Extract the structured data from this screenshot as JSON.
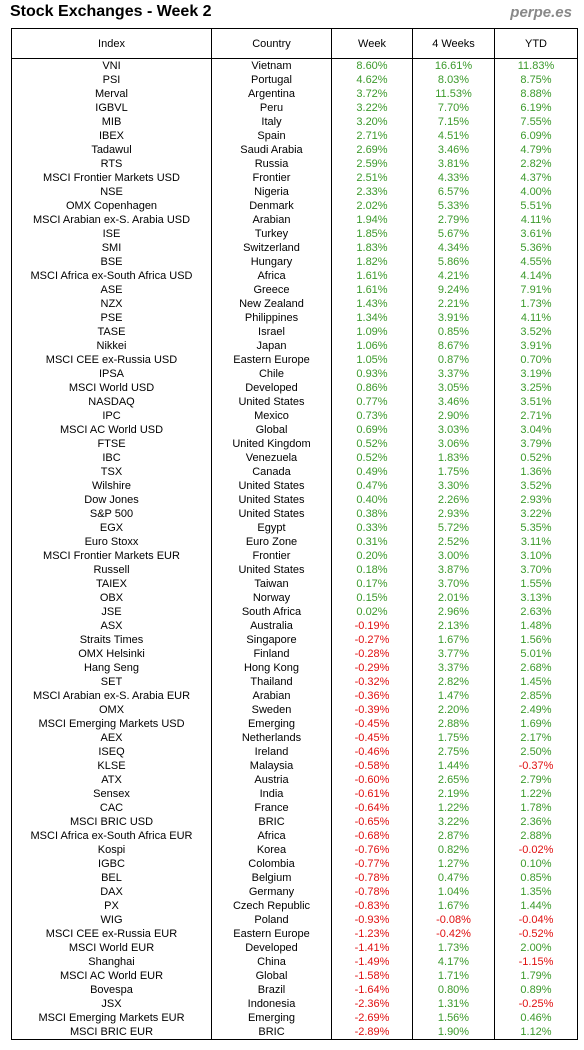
{
  "header": {
    "title": "Stock Exchanges - Week 2",
    "site": "perpe.es"
  },
  "table": {
    "columns": [
      "Index",
      "Country",
      "Week",
      "4 Weeks",
      "YTD"
    ],
    "rows": [
      [
        "VNI",
        "Vietnam",
        "8.60%",
        "16.61%",
        "11.83%"
      ],
      [
        "PSI",
        "Portugal",
        "4.62%",
        "8.03%",
        "8.75%"
      ],
      [
        "Merval",
        "Argentina",
        "3.72%",
        "11.53%",
        "8.88%"
      ],
      [
        "IGBVL",
        "Peru",
        "3.22%",
        "7.70%",
        "6.19%"
      ],
      [
        "MIB",
        "Italy",
        "3.20%",
        "7.15%",
        "7.55%"
      ],
      [
        "IBEX",
        "Spain",
        "2.71%",
        "4.51%",
        "6.09%"
      ],
      [
        "Tadawul",
        "Saudi Arabia",
        "2.69%",
        "3.46%",
        "4.79%"
      ],
      [
        "RTS",
        "Russia",
        "2.59%",
        "3.81%",
        "2.82%"
      ],
      [
        "MSCI Frontier Markets USD",
        "Frontier",
        "2.51%",
        "4.33%",
        "4.37%"
      ],
      [
        "NSE",
        "Nigeria",
        "2.33%",
        "6.57%",
        "4.00%"
      ],
      [
        "OMX Copenhagen",
        "Denmark",
        "2.02%",
        "5.33%",
        "5.51%"
      ],
      [
        "MSCI Arabian ex-S. Arabia USD",
        "Arabian",
        "1.94%",
        "2.79%",
        "4.11%"
      ],
      [
        "ISE",
        "Turkey",
        "1.85%",
        "5.67%",
        "3.61%"
      ],
      [
        "SMI",
        "Switzerland",
        "1.83%",
        "4.34%",
        "5.36%"
      ],
      [
        "BSE",
        "Hungary",
        "1.82%",
        "5.86%",
        "4.55%"
      ],
      [
        "MSCI Africa ex-South Africa USD",
        "Africa",
        "1.61%",
        "4.21%",
        "4.14%"
      ],
      [
        "ASE",
        "Greece",
        "1.61%",
        "9.24%",
        "7.91%"
      ],
      [
        "NZX",
        "New Zealand",
        "1.43%",
        "2.21%",
        "1.73%"
      ],
      [
        "PSE",
        "Philippines",
        "1.34%",
        "3.91%",
        "4.11%"
      ],
      [
        "TASE",
        "Israel",
        "1.09%",
        "0.85%",
        "3.52%"
      ],
      [
        "Nikkei",
        "Japan",
        "1.06%",
        "8.67%",
        "3.91%"
      ],
      [
        "MSCI CEE ex-Russia USD",
        "Eastern Europe",
        "1.05%",
        "0.87%",
        "0.70%"
      ],
      [
        "IPSA",
        "Chile",
        "0.93%",
        "3.37%",
        "3.19%"
      ],
      [
        "MSCI World USD",
        "Developed",
        "0.86%",
        "3.05%",
        "3.25%"
      ],
      [
        "NASDAQ",
        "United States",
        "0.77%",
        "3.46%",
        "3.51%"
      ],
      [
        "IPC",
        "Mexico",
        "0.73%",
        "2.90%",
        "2.71%"
      ],
      [
        "MSCI AC World USD",
        "Global",
        "0.69%",
        "3.03%",
        "3.04%"
      ],
      [
        "FTSE",
        "United Kingdom",
        "0.52%",
        "3.06%",
        "3.79%"
      ],
      [
        "IBC",
        "Venezuela",
        "0.52%",
        "1.83%",
        "0.52%"
      ],
      [
        "TSX",
        "Canada",
        "0.49%",
        "1.75%",
        "1.36%"
      ],
      [
        "Wilshire",
        "United States",
        "0.47%",
        "3.30%",
        "3.52%"
      ],
      [
        "Dow Jones",
        "United States",
        "0.40%",
        "2.26%",
        "2.93%"
      ],
      [
        "S&P 500",
        "United States",
        "0.38%",
        "2.93%",
        "3.22%"
      ],
      [
        "EGX",
        "Egypt",
        "0.33%",
        "5.72%",
        "5.35%"
      ],
      [
        "Euro Stoxx",
        "Euro Zone",
        "0.31%",
        "2.52%",
        "3.11%"
      ],
      [
        "MSCI Frontier Markets EUR",
        "Frontier",
        "0.20%",
        "3.00%",
        "3.10%"
      ],
      [
        "Russell",
        "United States",
        "0.18%",
        "3.87%",
        "3.70%"
      ],
      [
        "TAIEX",
        "Taiwan",
        "0.17%",
        "3.70%",
        "1.55%"
      ],
      [
        "OBX",
        "Norway",
        "0.15%",
        "2.01%",
        "3.13%"
      ],
      [
        "JSE",
        "South Africa",
        "0.02%",
        "2.96%",
        "2.63%"
      ],
      [
        "ASX",
        "Australia",
        "-0.19%",
        "2.13%",
        "1.48%"
      ],
      [
        "Straits Times",
        "Singapore",
        "-0.27%",
        "1.67%",
        "1.56%"
      ],
      [
        "OMX Helsinki",
        "Finland",
        "-0.28%",
        "3.77%",
        "5.01%"
      ],
      [
        "Hang Seng",
        "Hong Kong",
        "-0.29%",
        "3.37%",
        "2.68%"
      ],
      [
        "SET",
        "Thailand",
        "-0.32%",
        "2.82%",
        "1.45%"
      ],
      [
        "MSCI Arabian ex-S. Arabia EUR",
        "Arabian",
        "-0.36%",
        "1.47%",
        "2.85%"
      ],
      [
        "OMX",
        "Sweden",
        "-0.39%",
        "2.20%",
        "2.49%"
      ],
      [
        "MSCI Emerging Markets USD",
        "Emerging",
        "-0.45%",
        "2.88%",
        "1.69%"
      ],
      [
        "AEX",
        "Netherlands",
        "-0.45%",
        "1.75%",
        "2.17%"
      ],
      [
        "ISEQ",
        "Ireland",
        "-0.46%",
        "2.75%",
        "2.50%"
      ],
      [
        "KLSE",
        "Malaysia",
        "-0.58%",
        "1.44%",
        "-0.37%"
      ],
      [
        "ATX",
        "Austria",
        "-0.60%",
        "2.65%",
        "2.79%"
      ],
      [
        "Sensex",
        "India",
        "-0.61%",
        "2.19%",
        "1.22%"
      ],
      [
        "CAC",
        "France",
        "-0.64%",
        "1.22%",
        "1.78%"
      ],
      [
        "MSCI BRIC USD",
        "BRIC",
        "-0.65%",
        "3.22%",
        "2.36%"
      ],
      [
        "MSCI Africa ex-South Africa EUR",
        "Africa",
        "-0.68%",
        "2.87%",
        "2.88%"
      ],
      [
        "Kospi",
        "Korea",
        "-0.76%",
        "0.82%",
        "-0.02%"
      ],
      [
        "IGBC",
        "Colombia",
        "-0.77%",
        "1.27%",
        "0.10%"
      ],
      [
        "BEL",
        "Belgium",
        "-0.78%",
        "0.47%",
        "0.85%"
      ],
      [
        "DAX",
        "Germany",
        "-0.78%",
        "1.04%",
        "1.35%"
      ],
      [
        "PX",
        "Czech Republic",
        "-0.83%",
        "1.67%",
        "1.44%"
      ],
      [
        "WIG",
        "Poland",
        "-0.93%",
        "-0.08%",
        "-0.04%"
      ],
      [
        "MSCI CEE ex-Russia EUR",
        "Eastern Europe",
        "-1.23%",
        "-0.42%",
        "-0.52%"
      ],
      [
        "MSCI World EUR",
        "Developed",
        "-1.41%",
        "1.73%",
        "2.00%"
      ],
      [
        "Shanghai",
        "China",
        "-1.49%",
        "4.17%",
        "-1.15%"
      ],
      [
        "MSCI AC World EUR",
        "Global",
        "-1.58%",
        "1.71%",
        "1.79%"
      ],
      [
        "Bovespa",
        "Brazil",
        "-1.64%",
        "0.80%",
        "0.89%"
      ],
      [
        "JSX",
        "Indonesia",
        "-2.36%",
        "1.31%",
        "-0.25%"
      ],
      [
        "MSCI Emerging Markets EUR",
        "Emerging",
        "-2.69%",
        "1.56%",
        "0.46%"
      ],
      [
        "MSCI BRIC EUR",
        "BRIC",
        "-2.89%",
        "1.90%",
        "1.12%"
      ]
    ]
  }
}
